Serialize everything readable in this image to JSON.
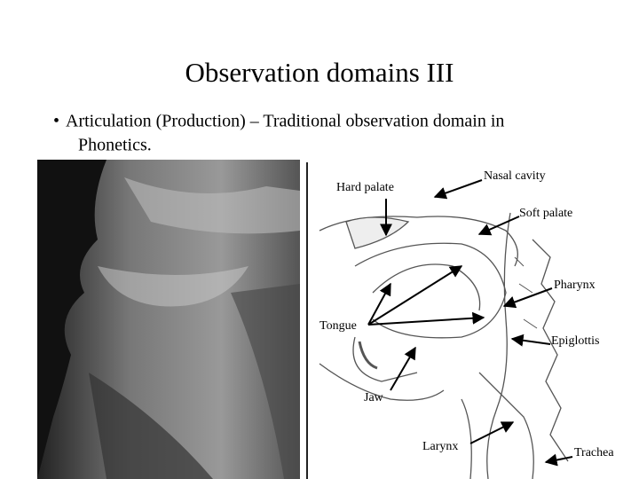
{
  "slide": {
    "title": "Observation domains III",
    "bullet": {
      "marker": "•",
      "lines": [
        "Articulation (Production) – Traditional observation domain in",
        "Phonetics."
      ]
    },
    "figure": {
      "labels": [
        "Hard palate",
        "Nasal cavity",
        "Soft palate",
        "Pharynx",
        "Tongue",
        "Epiglottis",
        "Jaw",
        "Larynx",
        "Trachea"
      ]
    }
  }
}
